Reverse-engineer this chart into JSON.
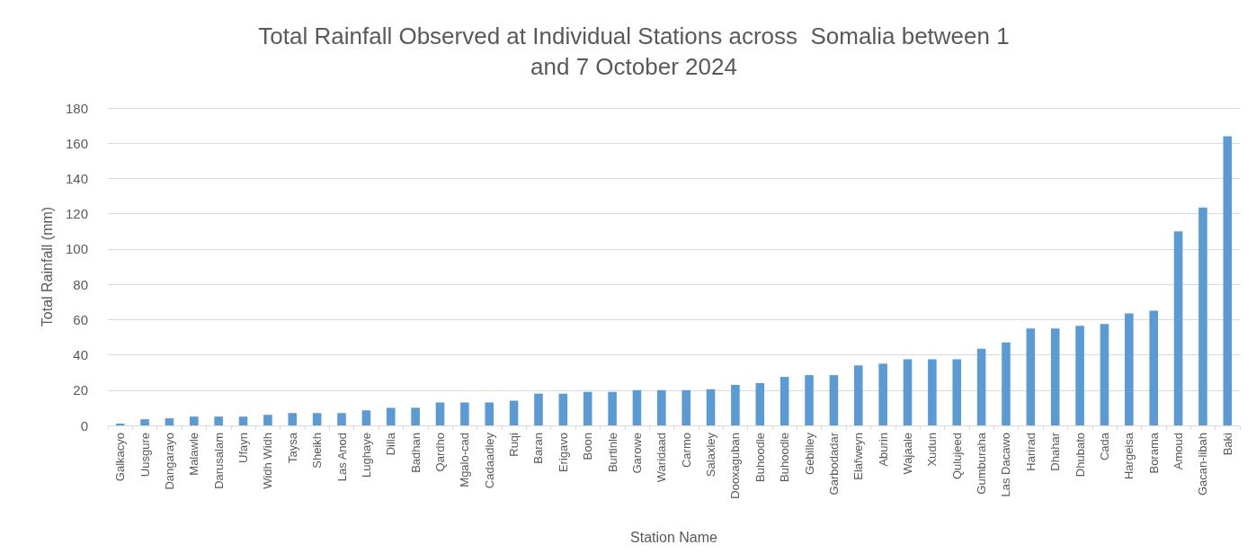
{
  "chart_data": {
    "type": "bar",
    "title": "Total Rainfall Observed at Individual Stations across  Somalia between 1\nand 7 October 2024",
    "xlabel": "Station Name",
    "ylabel": "Total Rainfall (mm)",
    "categories": [
      "Galkacyo",
      "Uusgure",
      "Dangarayo",
      "Malawle",
      "Darusalam",
      "Ufayn",
      "Widh Widh",
      "Taysa",
      "Sheikh",
      "Las Anod",
      "Lughaye",
      "Dilla",
      "Badhan",
      "Qardho",
      "Mgalo-cad",
      "Cadaadley",
      "Ruqi",
      "Baran",
      "Erigavo",
      "Boon",
      "Burtinle",
      "Garowe",
      "Waridaad",
      "Carmo",
      "Salaxley",
      "Dooxaguban",
      "Buhoodle",
      "Buhoodle",
      "Gebilley",
      "Garbodadar",
      "Elafweyn",
      "Aburin",
      "Wajaale",
      "Xudun",
      "Qulujeed",
      "Gumburaha",
      "Las Dacawo",
      "Harirad",
      "Dhahar",
      "Dhubato",
      "Cada",
      "Hargeisa",
      "Borama",
      "Amoud",
      "Gacan-libah",
      "Baki"
    ],
    "values": [
      1,
      3.5,
      4,
      5,
      5,
      5,
      6,
      7,
      7,
      7,
      8.5,
      10,
      10,
      13,
      13,
      13,
      14,
      18,
      18,
      19,
      19,
      20,
      20,
      20,
      20.5,
      23,
      24,
      27.5,
      28.5,
      28.5,
      34,
      35,
      37.5,
      37.5,
      37.5,
      43.5,
      47,
      55,
      55,
      56.5,
      57.5,
      63.5,
      65,
      110,
      123.5,
      164
    ],
    "color": "#5b9bd5",
    "ylim": [
      0,
      180
    ],
    "yticks": [
      0,
      20,
      40,
      60,
      80,
      100,
      120,
      140,
      160,
      180
    ],
    "grid": "y"
  }
}
